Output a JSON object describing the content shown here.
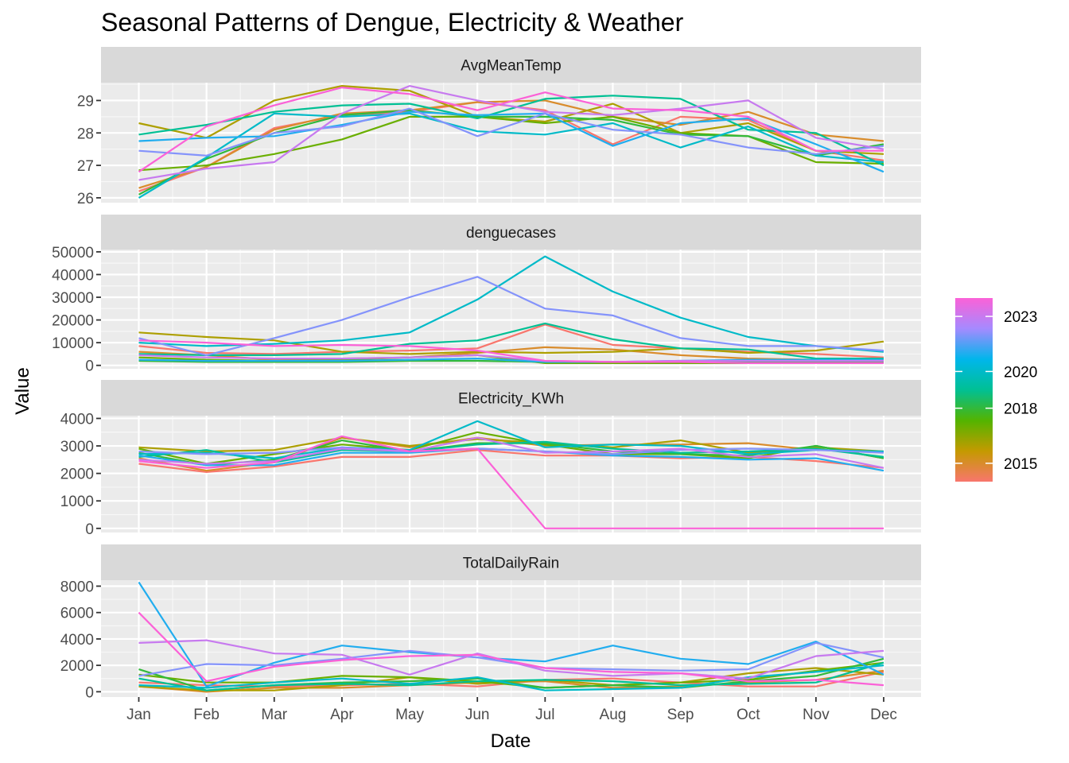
{
  "chart_data": {
    "type": "line",
    "title": "Seasonal Patterns of Dengue, Electricity & Weather",
    "xlabel": "Date",
    "ylabel": "Value",
    "categories": [
      "Jan",
      "Feb",
      "Mar",
      "Apr",
      "May",
      "Jun",
      "Jul",
      "Aug",
      "Sep",
      "Oct",
      "Nov",
      "Dec"
    ],
    "legend": {
      "title": "",
      "placement": "right",
      "type": "color-gradient",
      "range": [
        2014,
        2024
      ],
      "ticks": [
        2015,
        2018,
        2020,
        2023
      ],
      "gradient_colors": [
        "#F8766D",
        "#C49A00",
        "#53B400",
        "#00C094",
        "#00B6EB",
        "#A58AFF",
        "#FB61D7"
      ]
    },
    "panels": [
      {
        "name": "AvgMeanTemp",
        "ylim": [
          25.85,
          29.55
        ],
        "yticks": [
          26,
          27,
          28,
          29
        ],
        "grid": true,
        "series": [
          {
            "year": 2014,
            "values": [
              26.2,
              26.95,
              28.15,
              28.55,
              28.65,
              28.95,
              28.7,
              27.65,
              28.5,
              28.4,
              27.45,
              27.15
            ]
          },
          {
            "year": 2015,
            "values": [
              26.3,
              26.95,
              28.1,
              28.6,
              28.7,
              28.95,
              29.0,
              28.5,
              28.25,
              28.65,
              27.95,
              27.75
            ]
          },
          {
            "year": 2016,
            "values": [
              28.3,
              27.85,
              29.0,
              29.45,
              29.3,
              28.5,
              28.35,
              28.9,
              28.0,
              28.3,
              27.45,
              27.35
            ]
          },
          {
            "year": 2017,
            "values": [
              26.85,
              27.0,
              27.35,
              27.8,
              28.5,
              28.5,
              28.3,
              28.5,
              28.0,
              27.9,
              27.1,
              27.05
            ]
          },
          {
            "year": 2018,
            "values": [
              26.1,
              27.2,
              28.0,
              28.55,
              28.7,
              28.5,
              28.5,
              28.4,
              27.95,
              27.9,
              27.3,
              27.65
            ]
          },
          {
            "year": 2019,
            "values": [
              27.95,
              28.25,
              28.65,
              28.85,
              28.9,
              28.45,
              29.05,
              29.15,
              29.05,
              28.1,
              28.0,
              27.0
            ]
          },
          {
            "year": 2020,
            "values": [
              26.0,
              27.25,
              28.6,
              28.5,
              28.6,
              28.05,
              27.95,
              28.3,
              27.55,
              28.2,
              27.3,
              27.1
            ]
          },
          {
            "year": 2021,
            "values": [
              27.75,
              27.85,
              27.9,
              28.25,
              28.65,
              28.55,
              28.6,
              27.6,
              28.3,
              28.45,
              27.65,
              26.8
            ]
          },
          {
            "year": 2022,
            "values": [
              27.45,
              27.3,
              28.0,
              28.2,
              28.75,
              27.9,
              28.6,
              28.1,
              27.95,
              27.55,
              27.35,
              27.6
            ]
          },
          {
            "year": 2023,
            "values": [
              26.55,
              26.9,
              27.1,
              28.6,
              29.45,
              29.0,
              28.65,
              28.55,
              28.75,
              29.0,
              27.85,
              27.5
            ]
          },
          {
            "year": 2024,
            "values": [
              26.8,
              28.2,
              28.85,
              29.4,
              29.2,
              28.7,
              29.25,
              28.75,
              28.7,
              28.5,
              27.45,
              27.45
            ]
          }
        ]
      },
      {
        "name": "denguecases",
        "ylim": [
          -1500,
          51000
        ],
        "yticks": [
          0,
          10000,
          20000,
          30000,
          40000,
          50000
        ],
        "grid": true,
        "series": [
          {
            "year": 2014,
            "values": [
              8500,
              5500,
              5000,
              6000,
              6500,
              7500,
              18000,
              9000,
              7500,
              6000,
              5000,
              3500
            ]
          },
          {
            "year": 2015,
            "values": [
              6000,
              4500,
              2500,
              3000,
              3500,
              5500,
              8000,
              7000,
              4500,
              3000,
              2500,
              2000
            ]
          },
          {
            "year": 2016,
            "values": [
              14500,
              12500,
              11000,
              6000,
              5000,
              6000,
              5500,
              6000,
              7500,
              5500,
              6500,
              10500
            ]
          },
          {
            "year": 2017,
            "values": [
              3500,
              2500,
              2000,
              2500,
              3500,
              4500,
              1000,
              1000,
              1000,
              1000,
              1000,
              1000
            ]
          },
          {
            "year": 2018,
            "values": [
              2000,
              1500,
              1500,
              1500,
              2000,
              2000,
              1500,
              1500,
              1500,
              1500,
              1500,
              1500
            ]
          },
          {
            "year": 2019,
            "values": [
              5000,
              4500,
              4500,
              5000,
              9500,
              11000,
              18500,
              11500,
              7500,
              7000,
              3000,
              3000
            ]
          },
          {
            "year": 2020,
            "values": [
              10000,
              8500,
              9500,
              11000,
              14500,
              29000,
              48000,
              32500,
              21000,
              12500,
              8500,
              6000
            ]
          },
          {
            "year": 2021,
            "values": [
              2500,
              2000,
              2000,
              2000,
              2500,
              3000,
              1500,
              1500,
              2000,
              2500,
              2500,
              2500
            ]
          },
          {
            "year": 2022,
            "values": [
              12000,
              4500,
              12000,
              20000,
              30000,
              39000,
              25000,
              22000,
              12000,
              8500,
              8500,
              6500
            ]
          },
          {
            "year": 2023,
            "values": [
              4500,
              3500,
              3000,
              3000,
              3500,
              4500,
              2000,
              1500,
              2000,
              2000,
              2000,
              2000
            ]
          },
          {
            "year": 2024,
            "values": [
              11000,
              10000,
              8500,
              9000,
              8500,
              6500,
              2000,
              1500,
              1500,
              1000,
              1000,
              1000
            ]
          }
        ]
      },
      {
        "name": "Electricity_KWh",
        "ylim": [
          -150,
          4100
        ],
        "yticks": [
          0,
          1000,
          2000,
          3000,
          4000
        ],
        "grid": true,
        "series": [
          {
            "year": 2014,
            "values": [
              2350,
              2050,
              2250,
              2600,
              2600,
              2850,
              2650,
              2650,
              2550,
              2600,
              2450,
              2200
            ]
          },
          {
            "year": 2015,
            "values": [
              2550,
              2100,
              2400,
              3300,
              2950,
              3300,
              3000,
              3050,
              3050,
              3100,
              2850,
              2800
            ]
          },
          {
            "year": 2016,
            "values": [
              2950,
              2800,
              2850,
              3300,
              3000,
              3250,
              3100,
              2950,
              3200,
              2750,
              2950,
              2800
            ]
          },
          {
            "year": 2017,
            "values": [
              2900,
              2350,
              2700,
              3050,
              2850,
              3500,
              3050,
              2700,
              2700,
              2550,
              3000,
              2550
            ]
          },
          {
            "year": 2018,
            "values": [
              2750,
              2300,
              2500,
              3200,
              2800,
              3100,
              3100,
              2800,
              2700,
              2650,
              3000,
              2550
            ]
          },
          {
            "year": 2019,
            "values": [
              2600,
              2850,
              2400,
              2850,
              2800,
              3050,
              3150,
              2900,
              2750,
              2800,
              2900,
              2600
            ]
          },
          {
            "year": 2020,
            "values": [
              2700,
              2750,
              2550,
              2950,
              2850,
              3900,
              2950,
              3050,
              3000,
              2700,
              2850,
              2800
            ]
          },
          {
            "year": 2021,
            "values": [
              2650,
              2300,
              2300,
              2750,
              2750,
              2900,
              2800,
              2650,
              2600,
              2500,
              2550,
              2100
            ]
          },
          {
            "year": 2022,
            "values": [
              2800,
              2700,
              2750,
              2950,
              2800,
              2900,
              2800,
              2700,
              2850,
              2900,
              2850,
              2750
            ]
          },
          {
            "year": 2023,
            "values": [
              2500,
              2350,
              2450,
              2900,
              2800,
              3300,
              2750,
              2800,
              2900,
              2600,
              2700,
              2200
            ]
          },
          {
            "year": 2024,
            "values": [
              2450,
              2200,
              2400,
              3350,
              2800,
              2900,
              0,
              0,
              0,
              0,
              0,
              0
            ]
          }
        ]
      },
      {
        "name": "TotalDailyRain",
        "ylim": [
          -400,
          8450
        ],
        "yticks": [
          0,
          2000,
          4000,
          6000,
          8000
        ],
        "grid": true,
        "series": [
          {
            "year": 2014,
            "values": [
              700,
              500,
              400,
              500,
              600,
              400,
              900,
              1000,
              700,
              400,
              400,
              1500
            ]
          },
          {
            "year": 2015,
            "values": [
              400,
              0,
              300,
              300,
              500,
              700,
              800,
              300,
              400,
              700,
              900,
              1600
            ]
          },
          {
            "year": 2016,
            "values": [
              400,
              100,
              100,
              500,
              1100,
              600,
              900,
              500,
              700,
              1400,
              1800,
              1300
            ]
          },
          {
            "year": 2017,
            "values": [
              1300,
              700,
              700,
              1200,
              1100,
              800,
              300,
              500,
              700,
              900,
              1600,
              2200
            ]
          },
          {
            "year": 2018,
            "values": [
              1700,
              100,
              500,
              700,
              800,
              1000,
              300,
              500,
              300,
              800,
              1200,
              2500
            ]
          },
          {
            "year": 2019,
            "values": [
              1000,
              100,
              500,
              600,
              500,
              800,
              900,
              800,
              500,
              600,
              700,
              2200
            ]
          },
          {
            "year": 2020,
            "values": [
              500,
              300,
              700,
              1000,
              600,
              1100,
              100,
              200,
              300,
              1100,
              1500,
              2000
            ]
          },
          {
            "year": 2021,
            "values": [
              8300,
              400,
              2200,
              3500,
              3000,
              2600,
              2300,
              3500,
              2500,
              2100,
              3800,
              1300
            ]
          },
          {
            "year": 2022,
            "values": [
              1200,
              2100,
              2000,
              2500,
              3100,
              2600,
              1800,
              1700,
              1600,
              1700,
              3700,
              2600
            ]
          },
          {
            "year": 2023,
            "values": [
              3700,
              3900,
              2900,
              2800,
              1300,
              2900,
              1600,
              1200,
              1400,
              1000,
              2700,
              3100
            ]
          },
          {
            "year": 2024,
            "values": [
              6000,
              800,
              1900,
              2400,
              2700,
              2800,
              1800,
              1500,
              1400,
              800,
              900,
              500
            ]
          }
        ]
      }
    ]
  }
}
